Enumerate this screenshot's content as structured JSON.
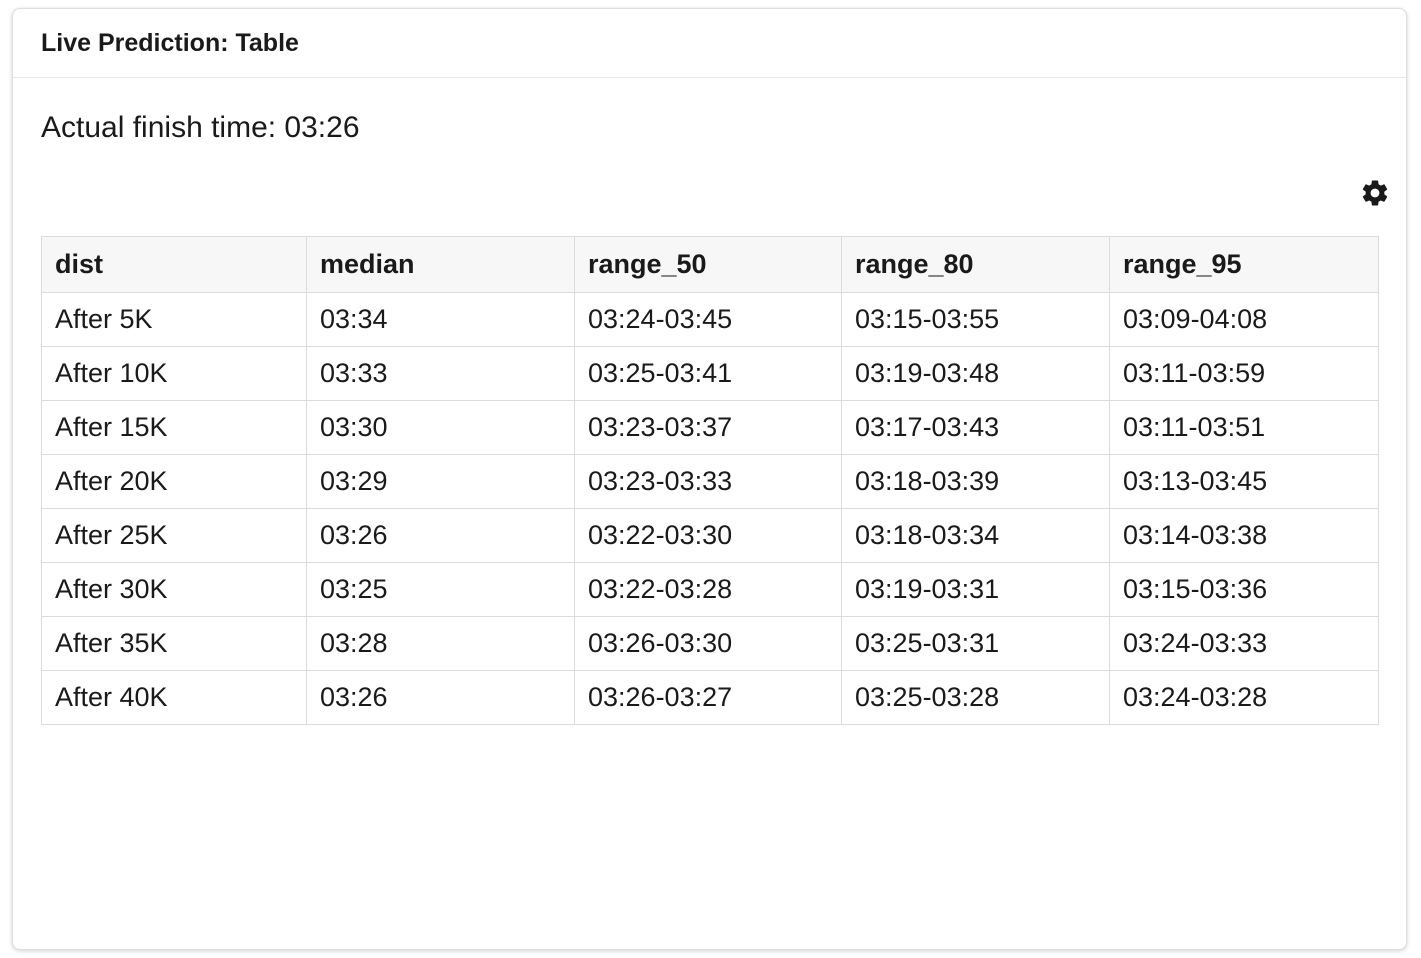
{
  "card": {
    "title": "Live Prediction: Table"
  },
  "summary": {
    "finish_text": "Actual finish time: 03:26"
  },
  "icons": {
    "settings": "gear-icon"
  },
  "table": {
    "columns": [
      "dist",
      "median",
      "range_50",
      "range_80",
      "range_95"
    ],
    "rows": [
      [
        "After 5K",
        "03:34",
        "03:24-03:45",
        "03:15-03:55",
        "03:09-04:08"
      ],
      [
        "After 10K",
        "03:33",
        "03:25-03:41",
        "03:19-03:48",
        "03:11-03:59"
      ],
      [
        "After 15K",
        "03:30",
        "03:23-03:37",
        "03:17-03:43",
        "03:11-03:51"
      ],
      [
        "After 20K",
        "03:29",
        "03:23-03:33",
        "03:18-03:39",
        "03:13-03:45"
      ],
      [
        "After 25K",
        "03:26",
        "03:22-03:30",
        "03:18-03:34",
        "03:14-03:38"
      ],
      [
        "After 30K",
        "03:25",
        "03:22-03:28",
        "03:19-03:31",
        "03:15-03:36"
      ],
      [
        "After 35K",
        "03:28",
        "03:26-03:30",
        "03:25-03:31",
        "03:24-03:33"
      ],
      [
        "After 40K",
        "03:26",
        "03:26-03:27",
        "03:25-03:28",
        "03:24-03:28"
      ]
    ]
  }
}
